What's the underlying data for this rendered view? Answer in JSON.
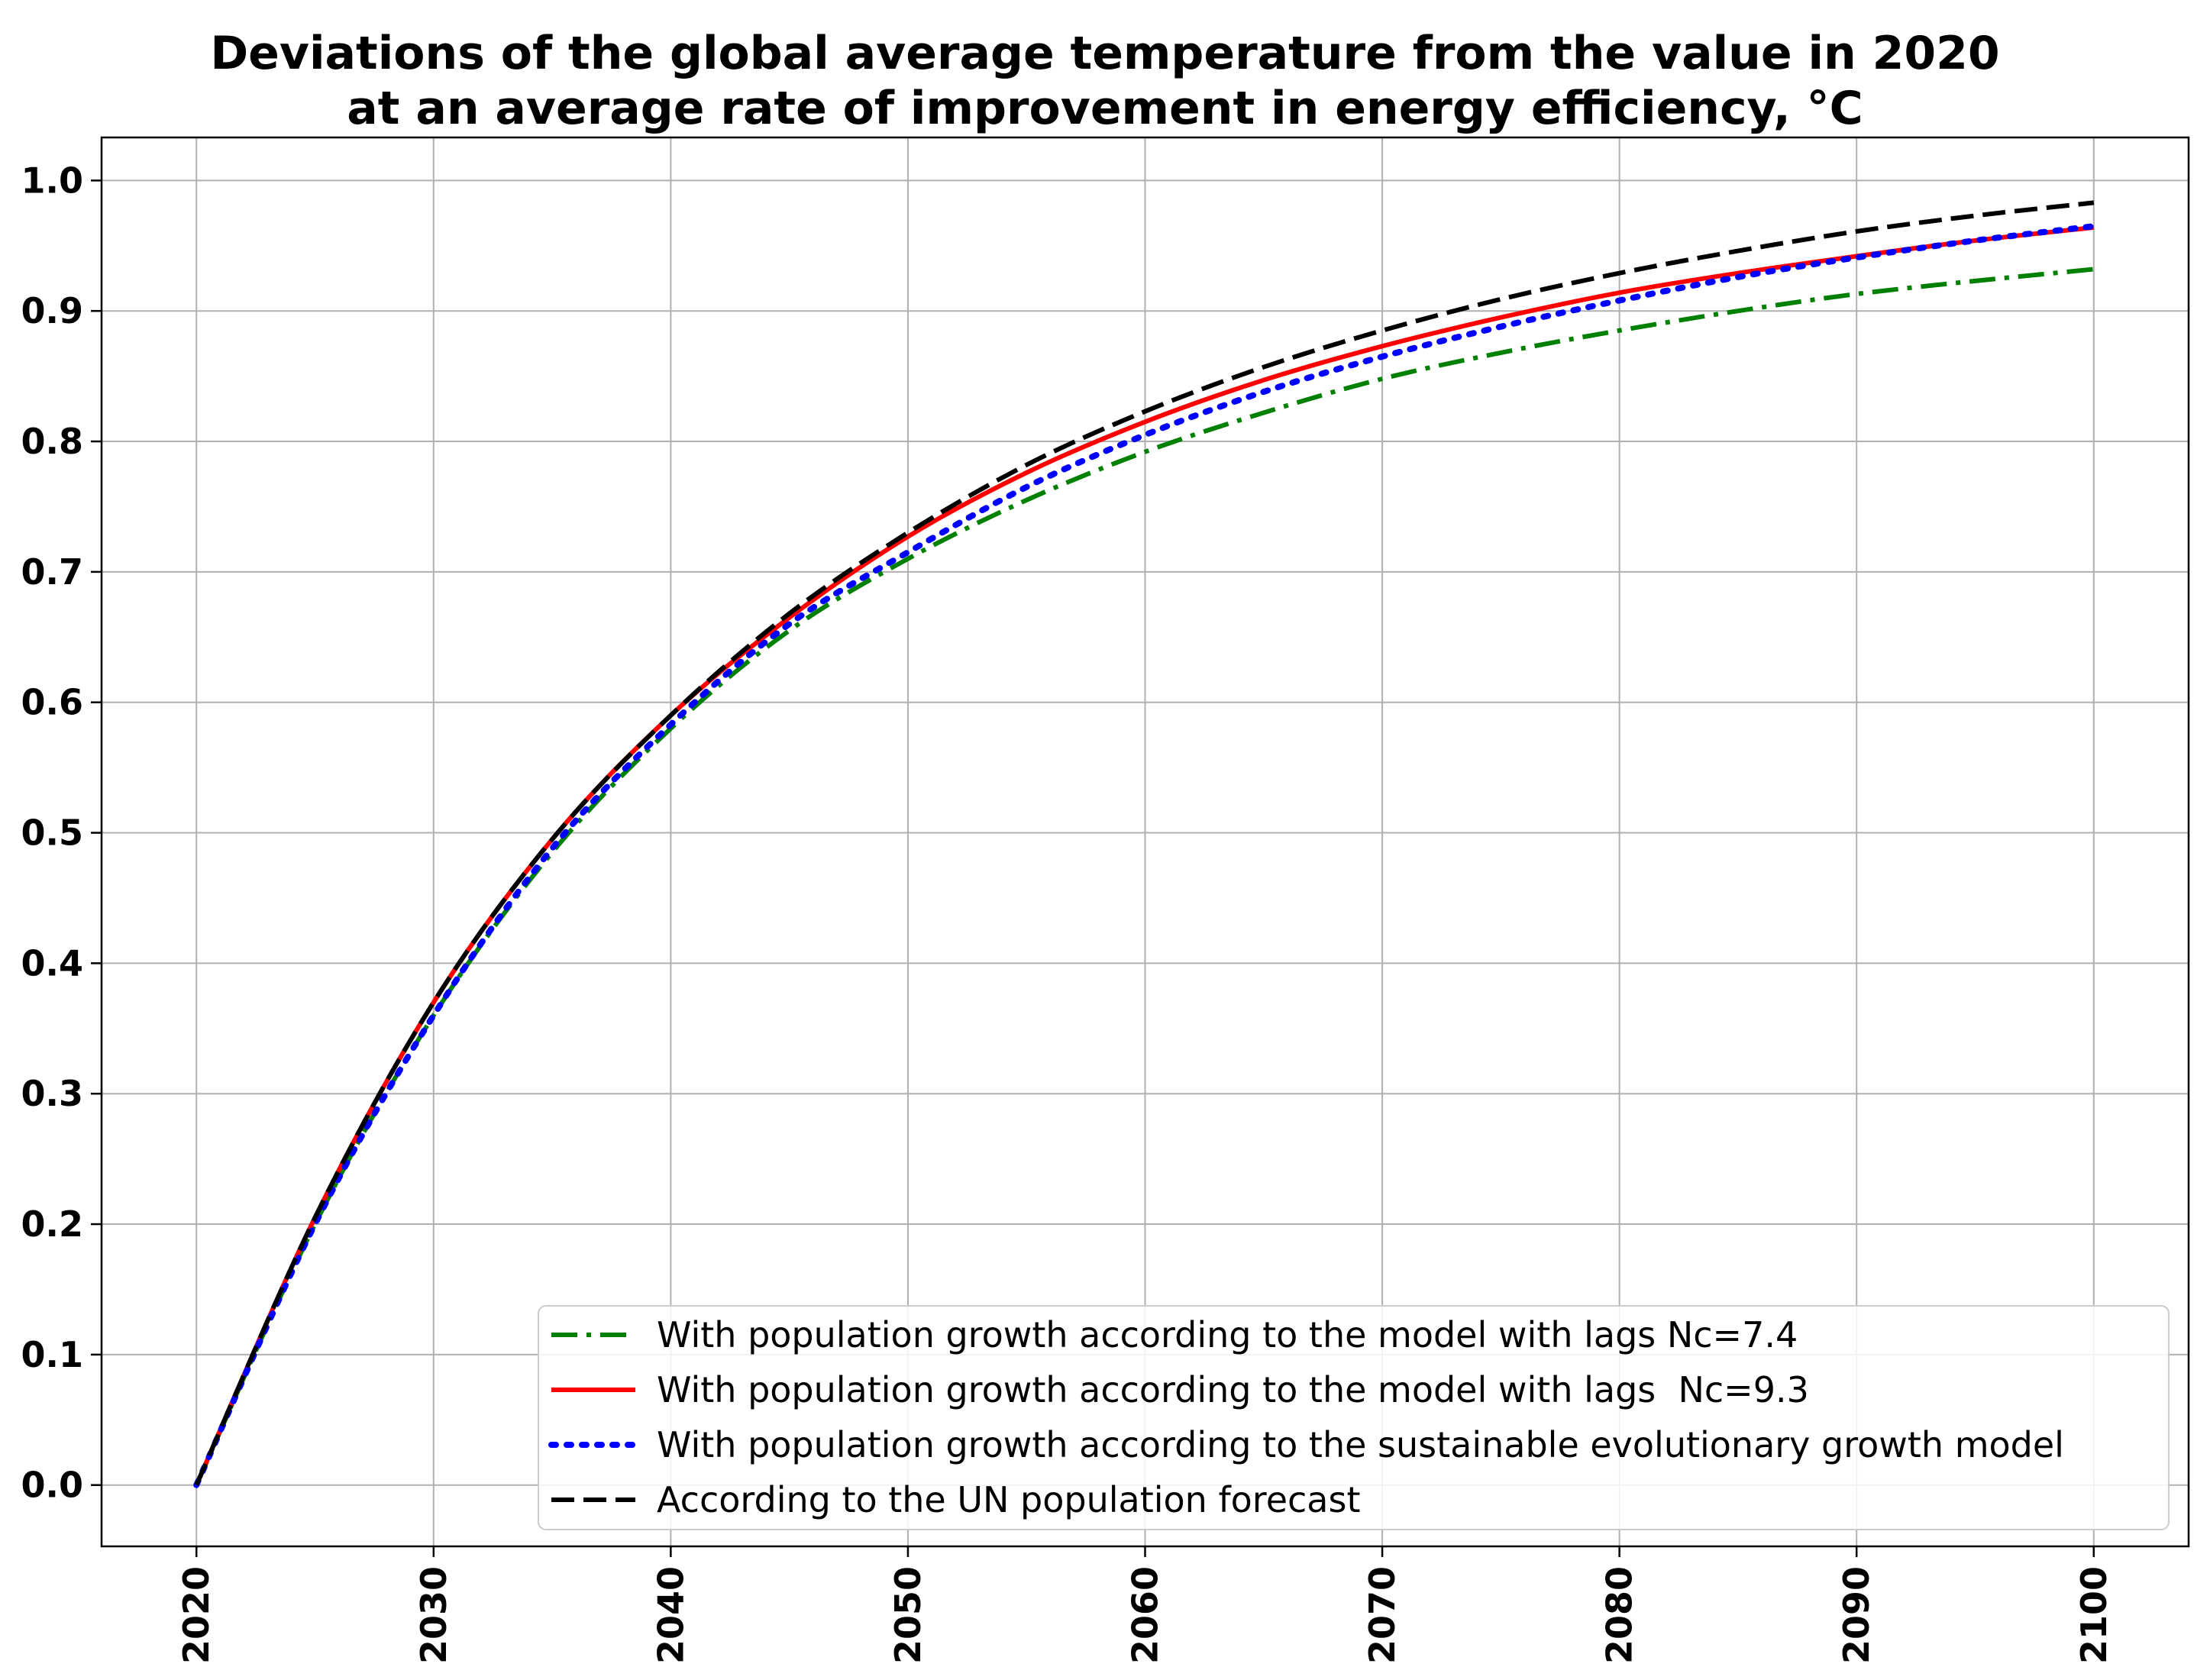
{
  "chart_data": {
    "type": "line",
    "title": [
      "Deviations of the global average temperature from the value in 2020",
      "at an average rate of improvement in energy efficiency, °C"
    ],
    "xlabel": "",
    "ylabel": "",
    "xlim": [
      2016,
      2104
    ],
    "ylim": [
      -0.047,
      1.033
    ],
    "x_ticks": [
      2020,
      2030,
      2040,
      2050,
      2060,
      2070,
      2080,
      2090,
      2100
    ],
    "y_ticks": [
      0.0,
      0.1,
      0.2,
      0.3,
      0.4,
      0.5,
      0.6,
      0.7,
      0.8,
      0.9,
      1.0
    ],
    "grid": true,
    "legend_position": "lower-right",
    "x": [
      2020,
      2025,
      2030,
      2035,
      2040,
      2045,
      2050,
      2055,
      2060,
      2065,
      2070,
      2075,
      2080,
      2085,
      2090,
      2095,
      2100
    ],
    "series": [
      {
        "name": "With population growth according to the model with lags Nc=7.4",
        "color": "#008000",
        "style": "dashdot",
        "values": [
          0.0,
          0.2,
          0.36,
          0.485,
          0.58,
          0.655,
          0.71,
          0.755,
          0.792,
          0.822,
          0.848,
          0.868,
          0.885,
          0.9,
          0.913,
          0.923,
          0.932
        ]
      },
      {
        "name": "With population growth according to the model with lags  Nc=9.3",
        "color": "#ff0000",
        "style": "solid",
        "values": [
          0.0,
          0.205,
          0.37,
          0.495,
          0.59,
          0.665,
          0.727,
          0.776,
          0.815,
          0.847,
          0.873,
          0.895,
          0.914,
          0.929,
          0.942,
          0.954,
          0.964
        ]
      },
      {
        "name": "With population growth according to the sustainable evolutionary growth model",
        "color": "#0000ff",
        "style": "dotted",
        "values": [
          0.0,
          0.2,
          0.36,
          0.488,
          0.583,
          0.66,
          0.715,
          0.765,
          0.805,
          0.838,
          0.865,
          0.888,
          0.908,
          0.926,
          0.941,
          0.954,
          0.965
        ]
      },
      {
        "name": "According to the UN population forecast",
        "color": "#000000",
        "style": "dashed",
        "values": [
          0.0,
          0.205,
          0.37,
          0.495,
          0.59,
          0.668,
          0.73,
          0.782,
          0.823,
          0.857,
          0.885,
          0.909,
          0.929,
          0.946,
          0.961,
          0.973,
          0.983
        ]
      }
    ]
  }
}
